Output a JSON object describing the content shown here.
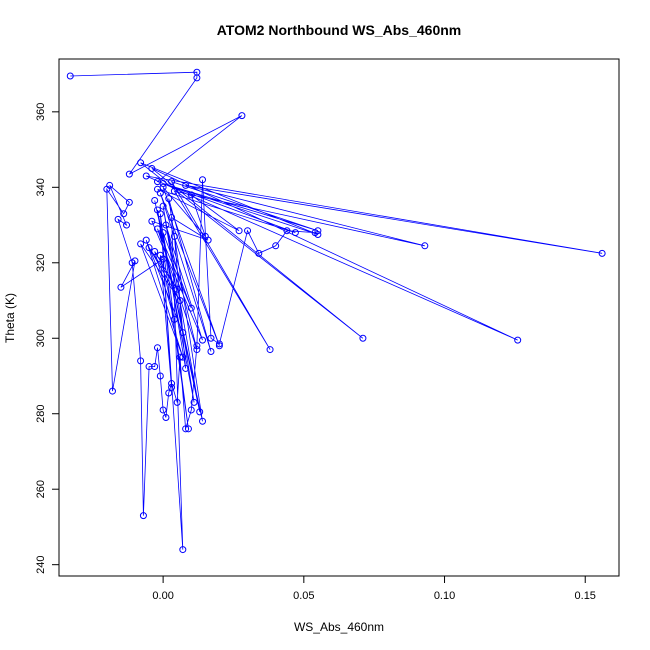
{
  "chart_data": {
    "type": "line",
    "title": "ATOM2 Northbound WS_Abs_460nm",
    "xlabel": "WS_Abs_460nm",
    "ylabel": "Theta (K)",
    "xlim": [
      -0.037,
      0.162
    ],
    "ylim": [
      237,
      374
    ],
    "xticks": [
      0.0,
      0.05,
      0.1,
      0.15
    ],
    "xtick_labels": [
      "0.00",
      "0.05",
      "0.10",
      "0.15"
    ],
    "yticks": [
      240,
      260,
      280,
      300,
      320,
      340,
      360
    ],
    "ytick_labels": [
      "240",
      "260",
      "280",
      "300",
      "320",
      "340",
      "360"
    ],
    "grid": false,
    "legend": "none",
    "series": [
      {
        "color": "#0000ff",
        "marker": "open-circle",
        "x": [
          -0.033,
          0.012,
          0.012,
          -0.012,
          0.028,
          -0.002,
          0.055,
          -0.008,
          0.071,
          -0.004,
          0.126,
          -0.006,
          0.156,
          0.008,
          0.093,
          0.004,
          0.038,
          0.003,
          0.055,
          0.0,
          0.047,
          -0.002,
          0.027,
          0.01,
          0.015,
          0.0,
          0.02,
          -0.001,
          0.017,
          0.002,
          0.014,
          -0.003,
          0.013,
          0.0,
          0.011,
          -0.002,
          0.009,
          -0.001,
          0.007,
          0.003,
          0.016,
          -0.004,
          0.014,
          0.001,
          0.012,
          -0.002,
          0.01,
          0.0,
          0.008,
          0.004,
          0.007,
          -0.006,
          0.007,
          -0.008,
          0.006,
          -0.005,
          0.005,
          -0.003,
          0.004,
          -0.001,
          0.003,
          0.0,
          -0.015,
          -0.01,
          -0.018,
          -0.02,
          -0.014,
          -0.012,
          -0.019,
          -0.013,
          -0.016,
          -0.011,
          -0.008,
          -0.007,
          -0.005,
          -0.003,
          -0.002,
          -0.001,
          0.0,
          0.001,
          0.002,
          0.003,
          0.005,
          0.006,
          0.008,
          0.01,
          0.012,
          0.014,
          0.017,
          0.02,
          0.03,
          0.034,
          0.04,
          0.044,
          0.054
        ],
        "y": [
          369.5,
          370.5,
          369.0,
          343.5,
          359.0,
          341.5,
          327.5,
          346.5,
          300.0,
          345.0,
          299.5,
          343.0,
          322.5,
          340.5,
          324.5,
          339.0,
          297.0,
          341.5,
          328.5,
          341.0,
          328.0,
          339.5,
          328.5,
          338.0,
          327.0,
          340.0,
          298.0,
          338.5,
          296.5,
          337.0,
          278.0,
          336.5,
          280.5,
          335.0,
          283.0,
          334.0,
          276.0,
          333.0,
          244.0,
          332.0,
          326.0,
          331.0,
          299.5,
          330.0,
          297.0,
          329.0,
          308.0,
          328.0,
          292.0,
          327.0,
          301.5,
          326.0,
          295.0,
          325.0,
          310.0,
          324.0,
          313.0,
          323.0,
          305.0,
          322.0,
          287.0,
          321.0,
          313.5,
          320.5,
          286.0,
          339.5,
          333.0,
          336.0,
          340.5,
          330.0,
          331.5,
          320.0,
          294.0,
          253.0,
          292.5,
          292.5,
          297.5,
          290.0,
          281.0,
          279.0,
          285.5,
          288.0,
          283.0,
          295.0,
          276.0,
          281.0,
          298.0,
          342.0,
          300.0,
          298.5,
          328.5,
          322.5,
          324.5,
          328.5,
          328.0
        ]
      }
    ]
  }
}
